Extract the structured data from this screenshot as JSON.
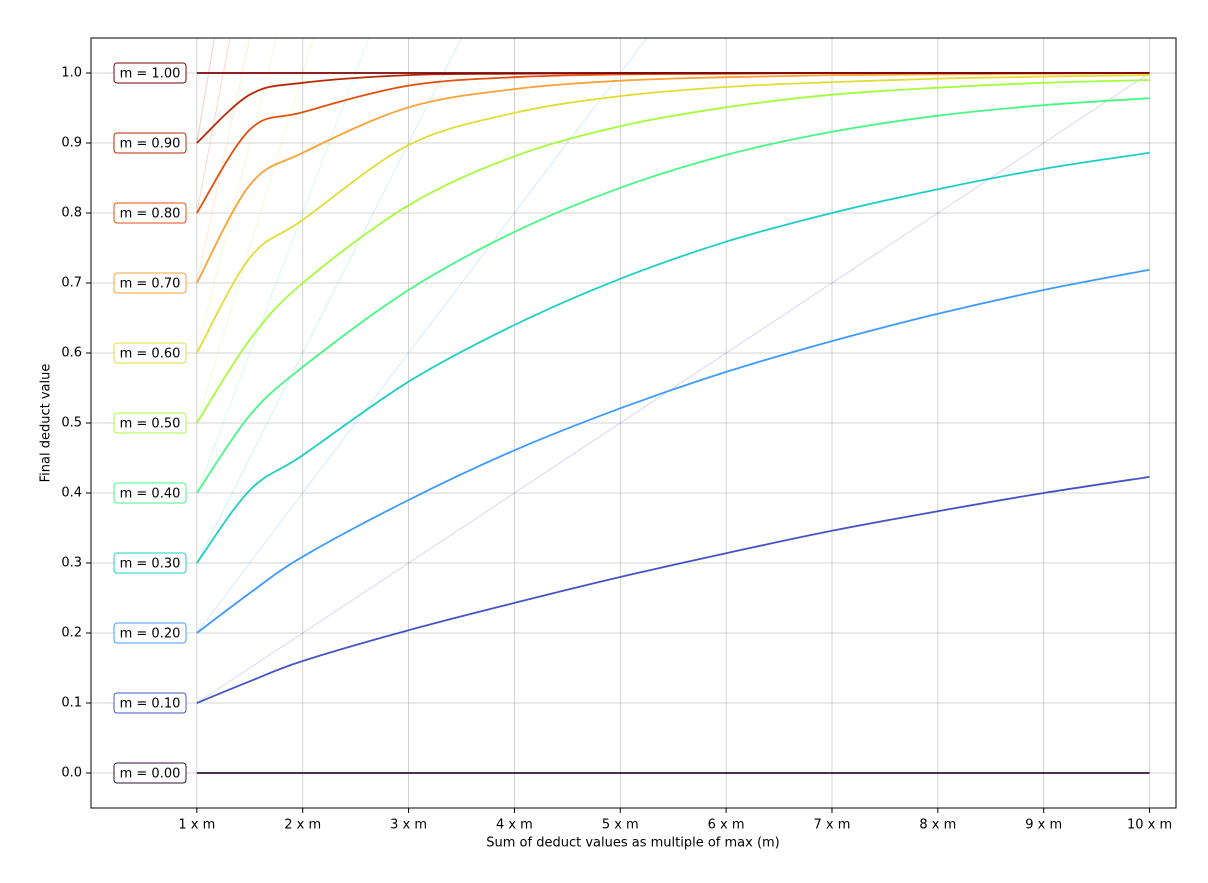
{
  "chart_data": {
    "type": "line",
    "x_label": "Sum of deduct values as multiple of max (m)",
    "y_label": "Final deduct value",
    "x": [
      1,
      1.5,
      2,
      3,
      4,
      5,
      6,
      7,
      8,
      9,
      10
    ],
    "series": [
      {
        "name": "m = 0.00",
        "color": "#30123b",
        "values": [
          0,
          0,
          0,
          0,
          0,
          0,
          0,
          0,
          0,
          0,
          0
        ]
      },
      {
        "name": "m = 0.10",
        "color": "#4454c4",
        "values": [
          0.1,
          0.131,
          0.16,
          0.204,
          0.243,
          0.28,
          0.314,
          0.346,
          0.374,
          0.4,
          0.423
        ],
        "reference_x": [
          1,
          10
        ],
        "reference_values": [
          0.1,
          1.0
        ]
      },
      {
        "name": "m = 0.20",
        "color": "#3e9bfe",
        "values": [
          0.2,
          0.257,
          0.309,
          0.39,
          0.461,
          0.521,
          0.573,
          0.617,
          0.656,
          0.69,
          0.719
        ],
        "reference_x": [
          1,
          5.25
        ],
        "reference_values": [
          0.2,
          1.05
        ]
      },
      {
        "name": "m = 0.30",
        "color": "#1ccfc6",
        "values": [
          0.3,
          0.404,
          0.454,
          0.559,
          0.64,
          0.706,
          0.759,
          0.8,
          0.834,
          0.863,
          0.886
        ],
        "reference_x": [
          1,
          3.5
        ],
        "reference_values": [
          0.3,
          1.05
        ]
      },
      {
        "name": "m = 0.40",
        "color": "#46f884",
        "values": [
          0.4,
          0.511,
          0.58,
          0.69,
          0.773,
          0.836,
          0.883,
          0.916,
          0.939,
          0.954,
          0.964
        ],
        "reference_x": [
          1,
          2.625
        ],
        "reference_values": [
          0.4,
          1.05
        ]
      },
      {
        "name": "m = 0.50",
        "color": "#a4fc3c",
        "values": [
          0.5,
          0.619,
          0.7,
          0.811,
          0.881,
          0.924,
          0.951,
          0.969,
          0.979,
          0.986,
          0.99
        ],
        "reference_x": [
          1,
          2.1
        ],
        "reference_values": [
          0.5,
          1.05
        ]
      },
      {
        "name": "m = 0.60",
        "color": "#e1dd37",
        "values": [
          0.6,
          0.736,
          0.79,
          0.897,
          0.943,
          0.967,
          0.98,
          0.987,
          0.992,
          0.995,
          0.997
        ],
        "reference_x": [
          1,
          1.75
        ],
        "reference_values": [
          0.6,
          1.05
        ]
      },
      {
        "name": "m = 0.70",
        "color": "#fba238",
        "values": [
          0.7,
          0.84,
          0.886,
          0.951,
          0.977,
          0.989,
          0.994,
          0.997,
          0.998,
          0.999,
          1.0
        ],
        "reference_x": [
          1,
          1.5
        ],
        "reference_values": [
          0.7,
          1.05
        ]
      },
      {
        "name": "m = 0.80",
        "color": "#e4500e",
        "values": [
          0.8,
          0.919,
          0.944,
          0.982,
          0.994,
          0.998,
          0.999,
          1.0,
          1.0,
          1.0,
          1.0
        ],
        "reference_x": [
          1,
          1.3125
        ],
        "reference_values": [
          0.8,
          1.05
        ]
      },
      {
        "name": "m = 0.90",
        "color": "#b92a04",
        "values": [
          0.9,
          0.969,
          0.986,
          0.997,
          0.999,
          1.0,
          1.0,
          1.0,
          1.0,
          1.0,
          1.0
        ],
        "reference_x": [
          1,
          1.1667
        ],
        "reference_values": [
          0.9,
          1.05
        ]
      },
      {
        "name": "m = 1.00",
        "color": "#7a0403",
        "values": [
          1,
          1,
          1,
          1,
          1,
          1,
          1,
          1,
          1,
          1,
          1
        ]
      }
    ],
    "xlim": [
      0,
      10.25
    ],
    "ylim": [
      -0.05,
      1.05
    ],
    "xticks": [
      {
        "value": 1,
        "label": "1 x m"
      },
      {
        "value": 2,
        "label": "2 x m"
      },
      {
        "value": 3,
        "label": "3 x m"
      },
      {
        "value": 4,
        "label": "4 x m"
      },
      {
        "value": 5,
        "label": "5 x m"
      },
      {
        "value": 6,
        "label": "6 x m"
      },
      {
        "value": 7,
        "label": "7 x m"
      },
      {
        "value": 8,
        "label": "8 x m"
      },
      {
        "value": 9,
        "label": "9 x m"
      },
      {
        "value": 10,
        "label": "10 x m"
      }
    ],
    "yticks": [
      {
        "value": 0,
        "label": "0.0"
      },
      0.1,
      0.2,
      0.3,
      0.4,
      0.5,
      0.6,
      0.7,
      0.8,
      0.9,
      {
        "value": 1,
        "label": "1.0"
      }
    ],
    "grid": true
  }
}
